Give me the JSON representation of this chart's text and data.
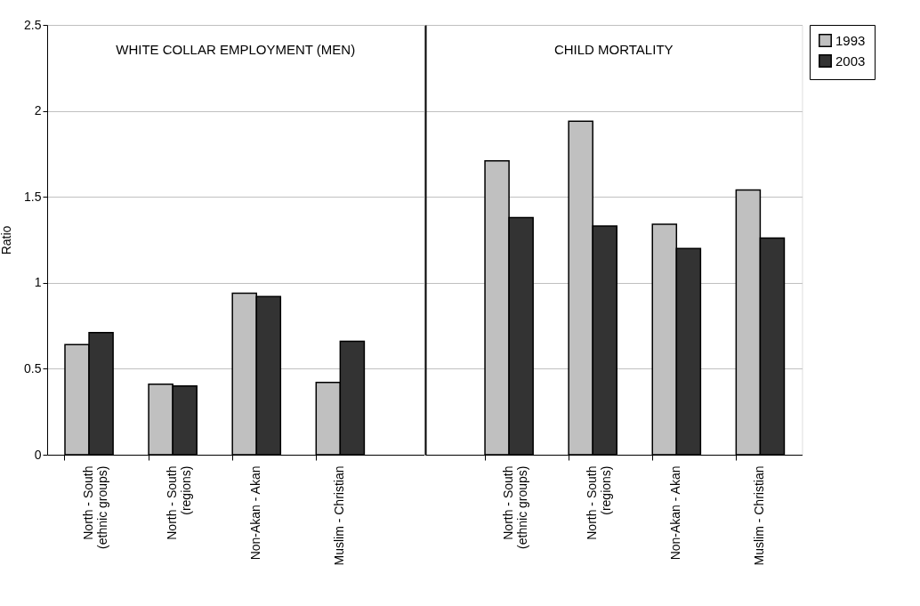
{
  "chart_data": [
    {
      "type": "bar",
      "ylabel": "Ratio",
      "categories": [
        "North - South\n(ethnic groups)",
        "North - South\n(regions)",
        "Non-Akan - Akan",
        "Muslim - Christian"
      ],
      "series": [
        {
          "name": "1993",
          "color": "#c0c0c0",
          "values": [
            0.64,
            0.41,
            0.94,
            0.42
          ]
        },
        {
          "name": "2003",
          "color": "#333333",
          "values": [
            0.71,
            0.4,
            0.92,
            0.66
          ]
        }
      ],
      "ylim": [
        0,
        2.5
      ],
      "yticks": [
        0,
        0.5,
        1,
        1.5,
        2,
        2.5
      ],
      "annotations": [
        "WHITE COLLAR EMPLOYMENT (MEN)"
      ],
      "grid": "y",
      "legend": "right"
    },
    {
      "type": "bar",
      "categories": [
        "North - South\n(ethnic groups)",
        "North - South\n(regions)",
        "Non-Akan - Akan",
        "Muslim - Christian"
      ],
      "series": [
        {
          "name": "1993",
          "color": "#c0c0c0",
          "values": [
            1.71,
            1.94,
            1.34,
            1.54
          ]
        },
        {
          "name": "2003",
          "color": "#333333",
          "values": [
            1.38,
            1.33,
            1.2,
            1.26
          ]
        }
      ],
      "ylim": [
        0,
        2.5
      ],
      "yticks": [
        0,
        0.5,
        1,
        1.5,
        2,
        2.5
      ],
      "tick_labels": "x",
      "annotations": [
        "CHILD MORTALITY"
      ],
      "grid": "y",
      "legend": "right"
    }
  ]
}
